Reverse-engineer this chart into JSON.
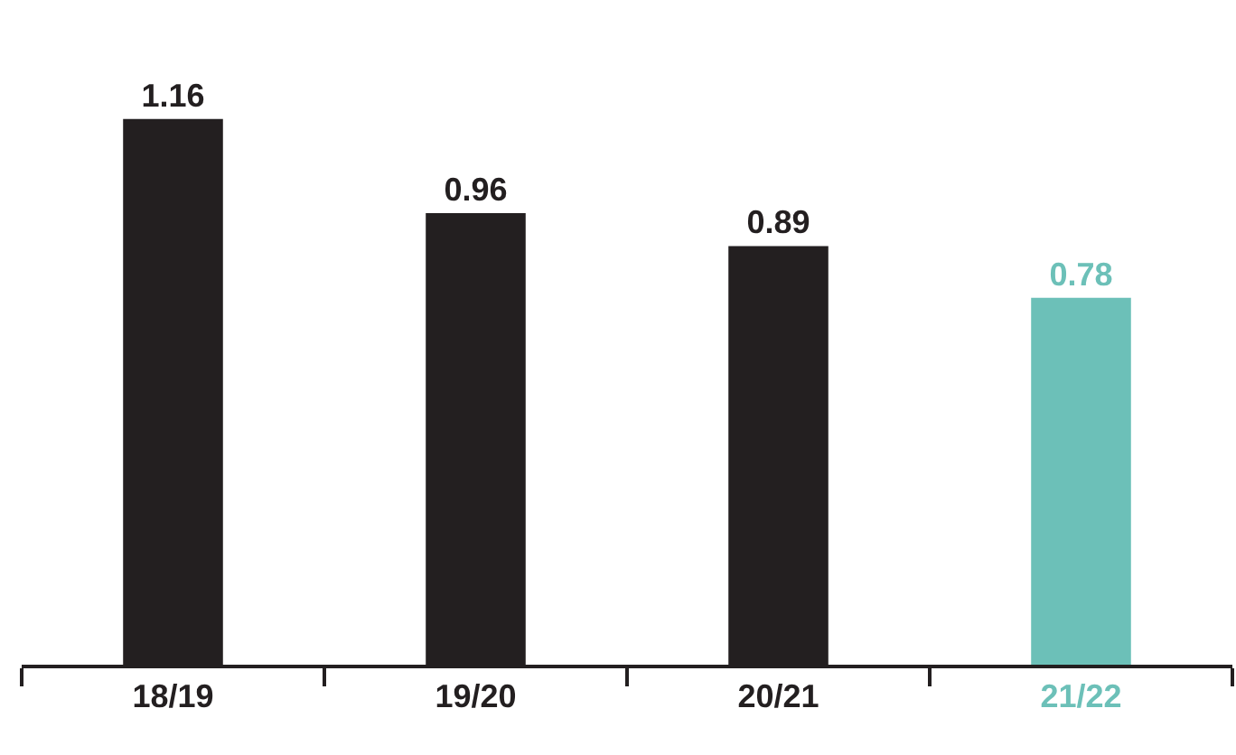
{
  "chart_data": {
    "type": "bar",
    "categories": [
      "18/19",
      "19/20",
      "20/21",
      "21/22"
    ],
    "values": [
      1.16,
      0.96,
      0.89,
      0.78
    ],
    "colors": [
      "#231f20",
      "#231f20",
      "#231f20",
      "#6cc0b8"
    ],
    "data_labels": true,
    "grid": false,
    "legend": false
  }
}
